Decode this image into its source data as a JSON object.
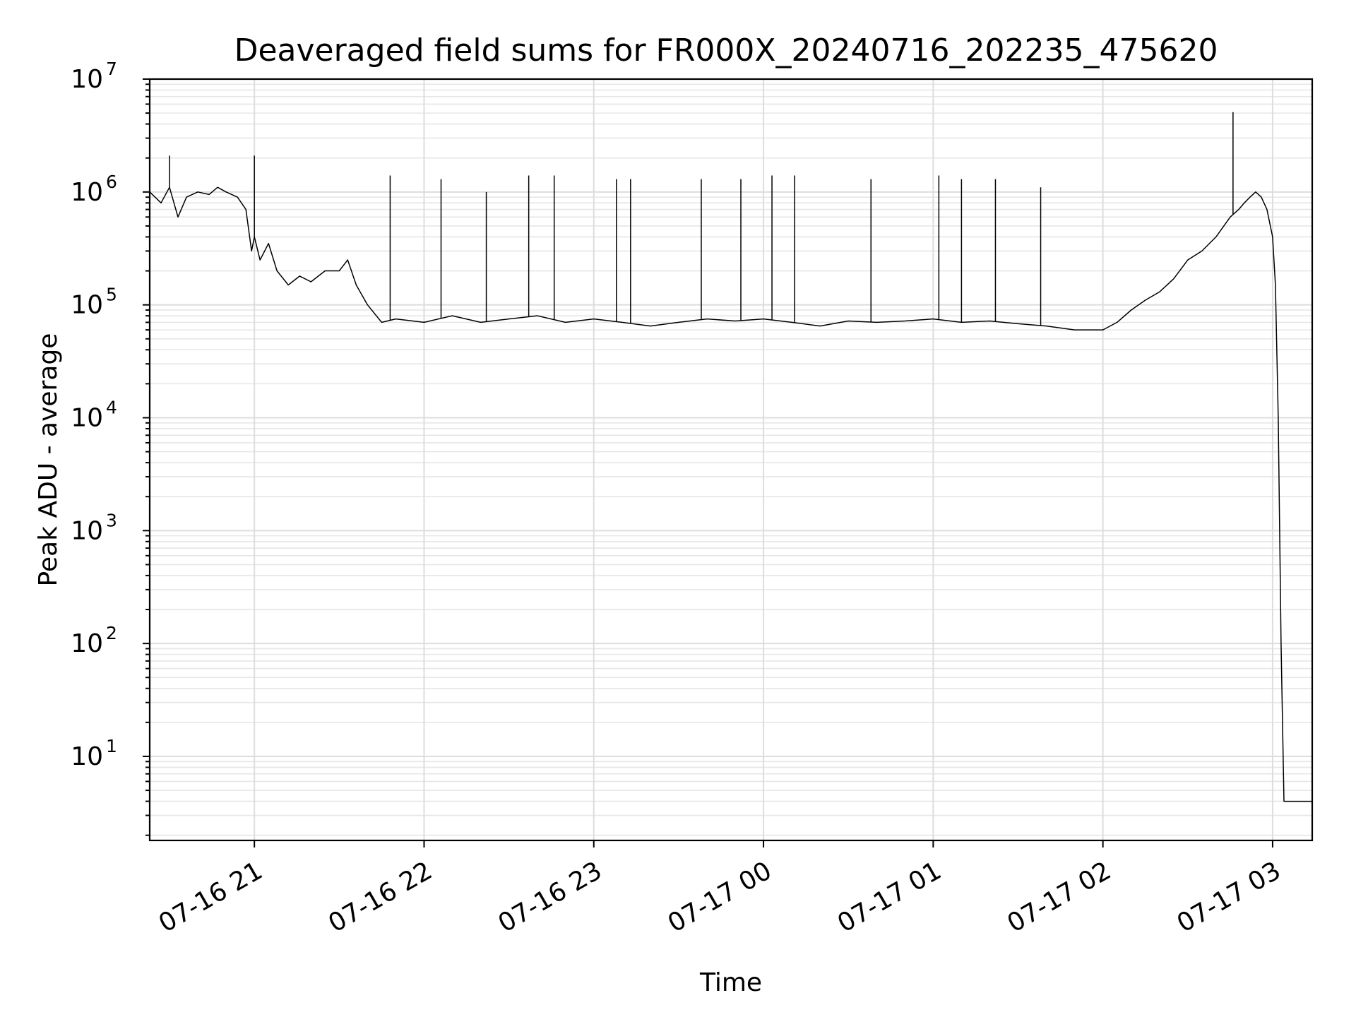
{
  "chart_data": {
    "type": "line",
    "title": "Deaveraged field sums for FR000X_20240716_202235_475620",
    "xlabel": "Time",
    "ylabel": "Peak ADU - average",
    "yscale": "log",
    "ylim": [
      1.8,
      10000000
    ],
    "xlim": [
      "2024-07-16 20:23",
      "2024-07-17 03:14"
    ],
    "grid": true,
    "x_ticks": [
      {
        "value": "2024-07-16 21:00",
        "label": "07-16 21"
      },
      {
        "value": "2024-07-16 22:00",
        "label": "07-16 22"
      },
      {
        "value": "2024-07-16 23:00",
        "label": "07-16 23"
      },
      {
        "value": "2024-07-17 00:00",
        "label": "07-17 00"
      },
      {
        "value": "2024-07-17 01:00",
        "label": "07-17 01"
      },
      {
        "value": "2024-07-17 02:00",
        "label": "07-17 02"
      },
      {
        "value": "2024-07-17 03:00",
        "label": "07-17 03"
      }
    ],
    "y_ticks": [
      {
        "value": 10,
        "base": "10",
        "exp": "1"
      },
      {
        "value": 100,
        "base": "10",
        "exp": "2"
      },
      {
        "value": 1000,
        "base": "10",
        "exp": "3"
      },
      {
        "value": 10000,
        "base": "10",
        "exp": "4"
      },
      {
        "value": 100000,
        "base": "10",
        "exp": "5"
      },
      {
        "value": 1000000,
        "base": "10",
        "exp": "6"
      },
      {
        "value": 10000000,
        "base": "10",
        "exp": "7"
      }
    ],
    "series": [
      {
        "color": "#000000",
        "x": [
          "2024-07-16 20:23",
          "2024-07-16 20:27",
          "2024-07-16 20:30",
          "2024-07-16 20:33",
          "2024-07-16 20:36",
          "2024-07-16 20:40",
          "2024-07-16 20:44",
          "2024-07-16 20:47",
          "2024-07-16 20:50",
          "2024-07-16 20:54",
          "2024-07-16 20:57",
          "2024-07-16 20:59",
          "2024-07-16 21:00",
          "2024-07-16 21:02",
          "2024-07-16 21:05",
          "2024-07-16 21:08",
          "2024-07-16 21:12",
          "2024-07-16 21:16",
          "2024-07-16 21:20",
          "2024-07-16 21:25",
          "2024-07-16 21:30",
          "2024-07-16 21:33",
          "2024-07-16 21:36",
          "2024-07-16 21:40",
          "2024-07-16 21:45",
          "2024-07-16 21:50",
          "2024-07-16 22:00",
          "2024-07-16 22:10",
          "2024-07-16 22:20",
          "2024-07-16 22:30",
          "2024-07-16 22:40",
          "2024-07-16 22:50",
          "2024-07-16 23:00",
          "2024-07-16 23:10",
          "2024-07-16 23:20",
          "2024-07-16 23:30",
          "2024-07-16 23:40",
          "2024-07-16 23:50",
          "2024-07-17 00:00",
          "2024-07-17 00:10",
          "2024-07-17 00:20",
          "2024-07-17 00:30",
          "2024-07-17 00:40",
          "2024-07-17 00:50",
          "2024-07-17 01:00",
          "2024-07-17 01:10",
          "2024-07-17 01:20",
          "2024-07-17 01:30",
          "2024-07-17 01:40",
          "2024-07-17 01:50",
          "2024-07-17 02:00",
          "2024-07-17 02:05",
          "2024-07-17 02:10",
          "2024-07-17 02:15",
          "2024-07-17 02:20",
          "2024-07-17 02:25",
          "2024-07-17 02:30",
          "2024-07-17 02:35",
          "2024-07-17 02:40",
          "2024-07-17 02:45",
          "2024-07-17 02:48",
          "2024-07-17 02:50",
          "2024-07-17 02:52",
          "2024-07-17 02:54",
          "2024-07-17 02:56",
          "2024-07-17 02:58",
          "2024-07-17 03:00",
          "2024-07-17 03:01",
          "2024-07-17 03:02",
          "2024-07-17 03:03",
          "2024-07-17 03:04",
          "2024-07-17 03:06",
          "2024-07-17 03:08",
          "2024-07-17 03:10",
          "2024-07-17 03:12",
          "2024-07-17 03:14"
        ],
        "y": [
          1000000,
          800000,
          1100000,
          600000,
          900000,
          1000000,
          950000,
          1100000,
          1000000,
          900000,
          700000,
          300000,
          400000,
          250000,
          350000,
          200000,
          150000,
          180000,
          160000,
          200000,
          200000,
          250000,
          150000,
          100000,
          70000,
          75000,
          70000,
          80000,
          70000,
          75000,
          80000,
          70000,
          75000,
          70000,
          65000,
          70000,
          75000,
          72000,
          75000,
          70000,
          65000,
          72000,
          70000,
          72000,
          75000,
          70000,
          72000,
          68000,
          65000,
          60000,
          60000,
          70000,
          90000,
          110000,
          130000,
          170000,
          250000,
          300000,
          400000,
          600000,
          700000,
          800000,
          900000,
          1000000,
          900000,
          700000,
          400000,
          150000,
          10000,
          100,
          4,
          4,
          4,
          4,
          4,
          4
        ]
      }
    ],
    "spikes": [
      {
        "x": "2024-07-16 20:30",
        "y": 2100000
      },
      {
        "x": "2024-07-16 21:00",
        "y": 2100000
      },
      {
        "x": "2024-07-16 21:48",
        "y": 1400000
      },
      {
        "x": "2024-07-16 22:06",
        "y": 1300000
      },
      {
        "x": "2024-07-16 22:22",
        "y": 1000000
      },
      {
        "x": "2024-07-16 22:37",
        "y": 1400000
      },
      {
        "x": "2024-07-16 22:46",
        "y": 1400000
      },
      {
        "x": "2024-07-16 23:08",
        "y": 1300000
      },
      {
        "x": "2024-07-16 23:13",
        "y": 1300000
      },
      {
        "x": "2024-07-16 23:38",
        "y": 1300000
      },
      {
        "x": "2024-07-16 23:52",
        "y": 1300000
      },
      {
        "x": "2024-07-17 00:03",
        "y": 1400000
      },
      {
        "x": "2024-07-17 00:11",
        "y": 1400000
      },
      {
        "x": "2024-07-17 00:38",
        "y": 1300000
      },
      {
        "x": "2024-07-17 01:02",
        "y": 1400000
      },
      {
        "x": "2024-07-17 01:10",
        "y": 1300000
      },
      {
        "x": "2024-07-17 01:22",
        "y": 1300000
      },
      {
        "x": "2024-07-17 01:38",
        "y": 1100000
      },
      {
        "x": "2024-07-17 02:46",
        "y": 5100000
      }
    ]
  }
}
